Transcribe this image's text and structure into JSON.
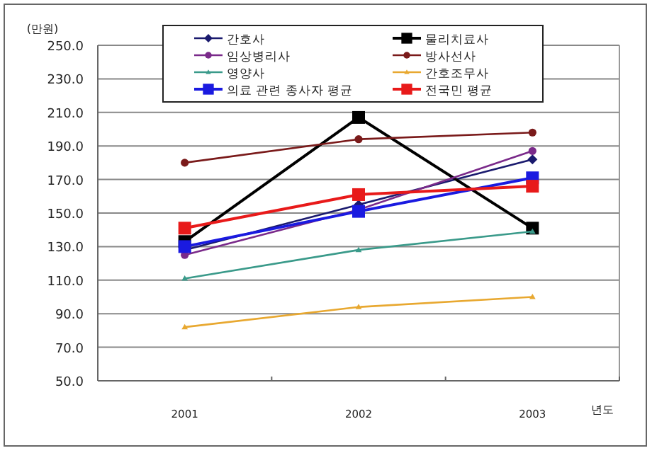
{
  "chart_data": {
    "type": "line",
    "ylabel": "(만원)",
    "xlabel": "년도",
    "categories": [
      "2001",
      "2002",
      "2003"
    ],
    "ylim": [
      50,
      250
    ],
    "yticks": [
      {
        "value": 50,
        "label": "50.0"
      },
      {
        "value": 70,
        "label": "70.0"
      },
      {
        "value": 90,
        "label": "90.0"
      },
      {
        "value": 110,
        "label": "110.0"
      },
      {
        "value": 130,
        "label": "130.0"
      },
      {
        "value": 150,
        "label": "150.0"
      },
      {
        "value": 170,
        "label": "170.0"
      },
      {
        "value": 190,
        "label": "190.0"
      },
      {
        "value": 210,
        "label": "210.0"
      },
      {
        "value": 230,
        "label": "230.0"
      },
      {
        "value": 250,
        "label": "250.0"
      }
    ],
    "grid": "y",
    "legend": "top",
    "series": [
      {
        "name": "간호사",
        "color": "#1a1a6e",
        "marker": "diamond",
        "values": [
          128,
          155,
          182
        ]
      },
      {
        "name": "물리치료사",
        "color": "#000000",
        "marker": "square",
        "values": [
          133,
          207,
          141
        ]
      },
      {
        "name": "임상병리사",
        "color": "#7a2a8a",
        "marker": "circle",
        "values": [
          125,
          152,
          187
        ]
      },
      {
        "name": "방사선사",
        "color": "#7a1a1a",
        "marker": "circle",
        "values": [
          180,
          194,
          198
        ]
      },
      {
        "name": "영양사",
        "color": "#3a9a8a",
        "marker": "triangle",
        "values": [
          111,
          128,
          139
        ]
      },
      {
        "name": "간호조무사",
        "color": "#e8a830",
        "marker": "triangle",
        "values": [
          82,
          94,
          100
        ]
      },
      {
        "name": "의료 관련 종사자 평균",
        "color": "#1a1ae0",
        "marker": "square",
        "values": [
          130,
          151,
          171
        ]
      },
      {
        "name": "전국민 평균",
        "color": "#e81a1a",
        "marker": "square",
        "values": [
          141,
          161,
          166
        ]
      }
    ]
  }
}
